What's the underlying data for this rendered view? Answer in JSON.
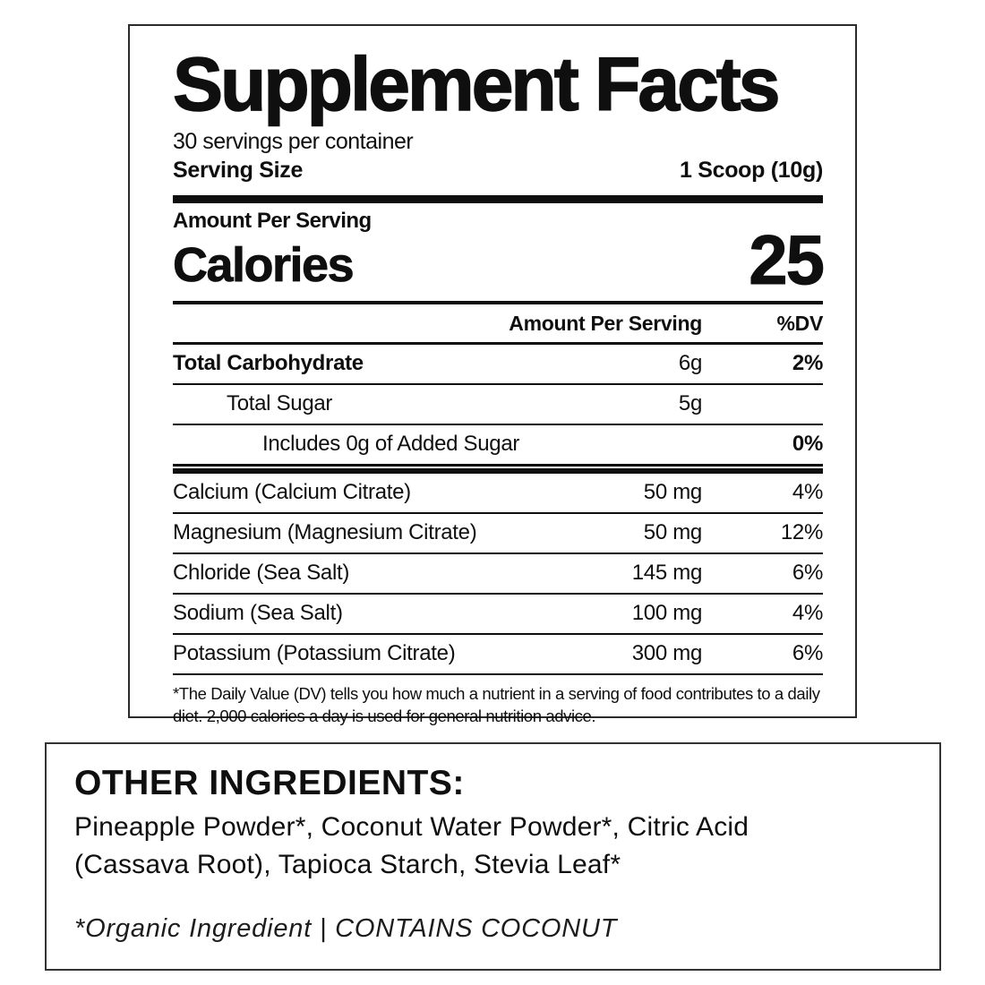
{
  "label": {
    "title": "Supplement Facts",
    "servings_per_container": "30 servings per container",
    "serving_size": {
      "label": "Serving Size",
      "value": "1 Scoop (10g)"
    },
    "calories": {
      "section_label": "Amount Per Serving",
      "label": "Calories",
      "value": "25"
    },
    "table": {
      "headers": {
        "amount": "Amount Per Serving",
        "dv": "%DV"
      },
      "rows": [
        {
          "name": "Total Carbohydrate",
          "amount": "6g",
          "dv": "2%"
        },
        {
          "name": "Total Sugar",
          "amount": "5g",
          "dv": ""
        },
        {
          "name": "Includes 0g of Added Sugar",
          "amount": "",
          "dv": "0%"
        },
        {
          "name": "Calcium (Calcium Citrate)",
          "amount": "50 mg",
          "dv": "4%"
        },
        {
          "name": "Magnesium (Magnesium Citrate)",
          "amount": "50 mg",
          "dv": "12%"
        },
        {
          "name": "Chloride (Sea Salt)",
          "amount": "145 mg",
          "dv": "6%"
        },
        {
          "name": "Sodium (Sea Salt)",
          "amount": "100 mg",
          "dv": "4%"
        },
        {
          "name": "Potassium (Potassium Citrate)",
          "amount": "300 mg",
          "dv": "6%"
        }
      ]
    },
    "footnote": "*The Daily Value (DV) tells you how much a nutrient in a serving of food contributes to a daily diet. 2,000 calories a day is used for general nutrition advice."
  },
  "other_ingredients": {
    "heading": "OTHER INGREDIENTS:",
    "list": "Pineapple Powder*, Coconut Water Powder*, Citric Acid (Cassava Root), Tapioca Starch, Stevia Leaf*",
    "note": "*Organic Ingredient | CONTAINS COCONUT"
  },
  "colors": {
    "text": "#0f0f0f",
    "panel_border": "#2b2b2b",
    "background": "#ffffff"
  }
}
